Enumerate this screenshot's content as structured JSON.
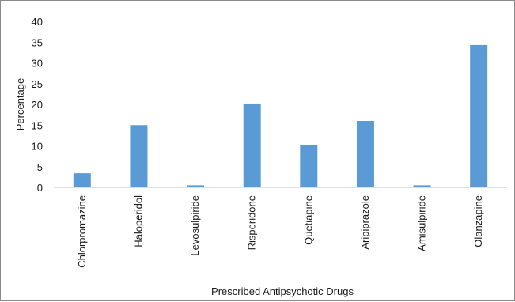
{
  "chart_data": {
    "type": "bar",
    "title": "",
    "xlabel": "Prescribed Antipsychotic Drugs",
    "ylabel": "Percentage",
    "ylim": [
      0,
      40
    ],
    "yticks": [
      "0",
      "5",
      "10",
      "15",
      "20",
      "25",
      "30",
      "35",
      "40"
    ],
    "grid": false,
    "legend": "none",
    "colors": {
      "bar": "#5b9bd5",
      "axis": "#bfbfbf"
    },
    "categories": [
      "Chlorpromazine",
      "Haloperidol",
      "Levosulpiride",
      "Risperidone",
      "Quetiapine",
      "Aripiprazole",
      "Amisulpiride",
      "Olanzapine"
    ],
    "values": [
      3.4,
      15.0,
      0.5,
      20.2,
      10.1,
      16.0,
      0.5,
      34.3
    ]
  }
}
